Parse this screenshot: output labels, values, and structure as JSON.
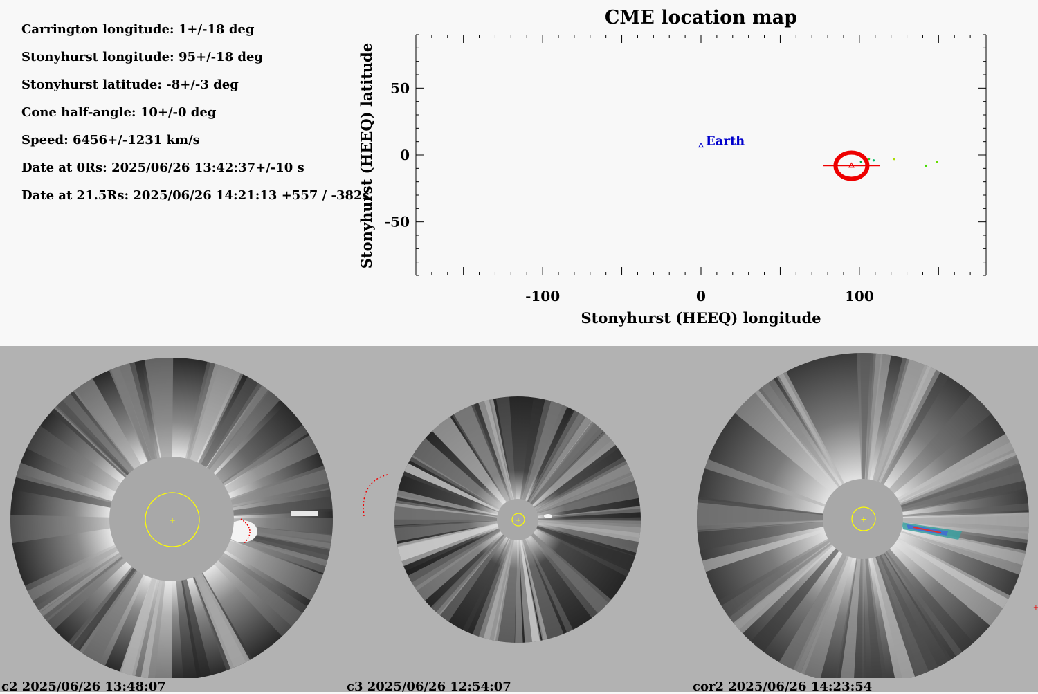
{
  "parameters": [
    "Carrington longitude: 1+/-18 deg",
    "Stonyhurst longitude: 95+/-18 deg",
    "Stonyhurst latitude: -8+/-3 deg",
    "Cone half-angle: 10+/-0 deg",
    "Speed: 6456+/-1231 km/s",
    "Date at 0Rs: 2025/06/26 13:42:37+/-10 s",
    "Date at 21.5Rs: 2025/06/26 14:21:13 +557 / -382s"
  ],
  "chart_data": {
    "type": "scatter",
    "title": "CME location map",
    "xlabel": "Stonyhurst (HEEQ) longitude",
    "ylabel": "Stonyhurst (HEEQ) latitude",
    "xlim": [
      -180,
      180
    ],
    "ylim": [
      -90,
      90
    ],
    "xticks": [
      -100,
      0,
      100
    ],
    "yticks": [
      50,
      0,
      -50
    ],
    "earth": {
      "label": "Earth",
      "lon": 0,
      "lat": 7,
      "color": "#0000cc"
    },
    "cme": {
      "lon": 95,
      "lat": -8,
      "lon_err": 18,
      "lat_err": 3,
      "color": "#ee0000"
    },
    "scatter_points": [
      {
        "lon": 101,
        "lat": -5,
        "color": "#00aa44"
      },
      {
        "lon": 106,
        "lat": -3,
        "color": "#22cc22"
      },
      {
        "lon": 109,
        "lat": -4,
        "color": "#00bb66"
      },
      {
        "lon": 122,
        "lat": -3,
        "color": "#aadd00"
      },
      {
        "lon": 142,
        "lat": -8,
        "color": "#44dd00"
      },
      {
        "lon": 149,
        "lat": -5,
        "color": "#66dd00"
      }
    ]
  },
  "panels": [
    {
      "caption": "c2 2025/06/26 13:48:07"
    },
    {
      "caption": "c3 2025/06/26 12:54:07"
    },
    {
      "caption": "cor2 2025/06/26 14:23:54"
    }
  ],
  "colors": {
    "sun_circle": "#ffff00",
    "fit_markers": "#ee0000",
    "occulter": "#a8a8a8",
    "background": "#b2b2b2"
  }
}
